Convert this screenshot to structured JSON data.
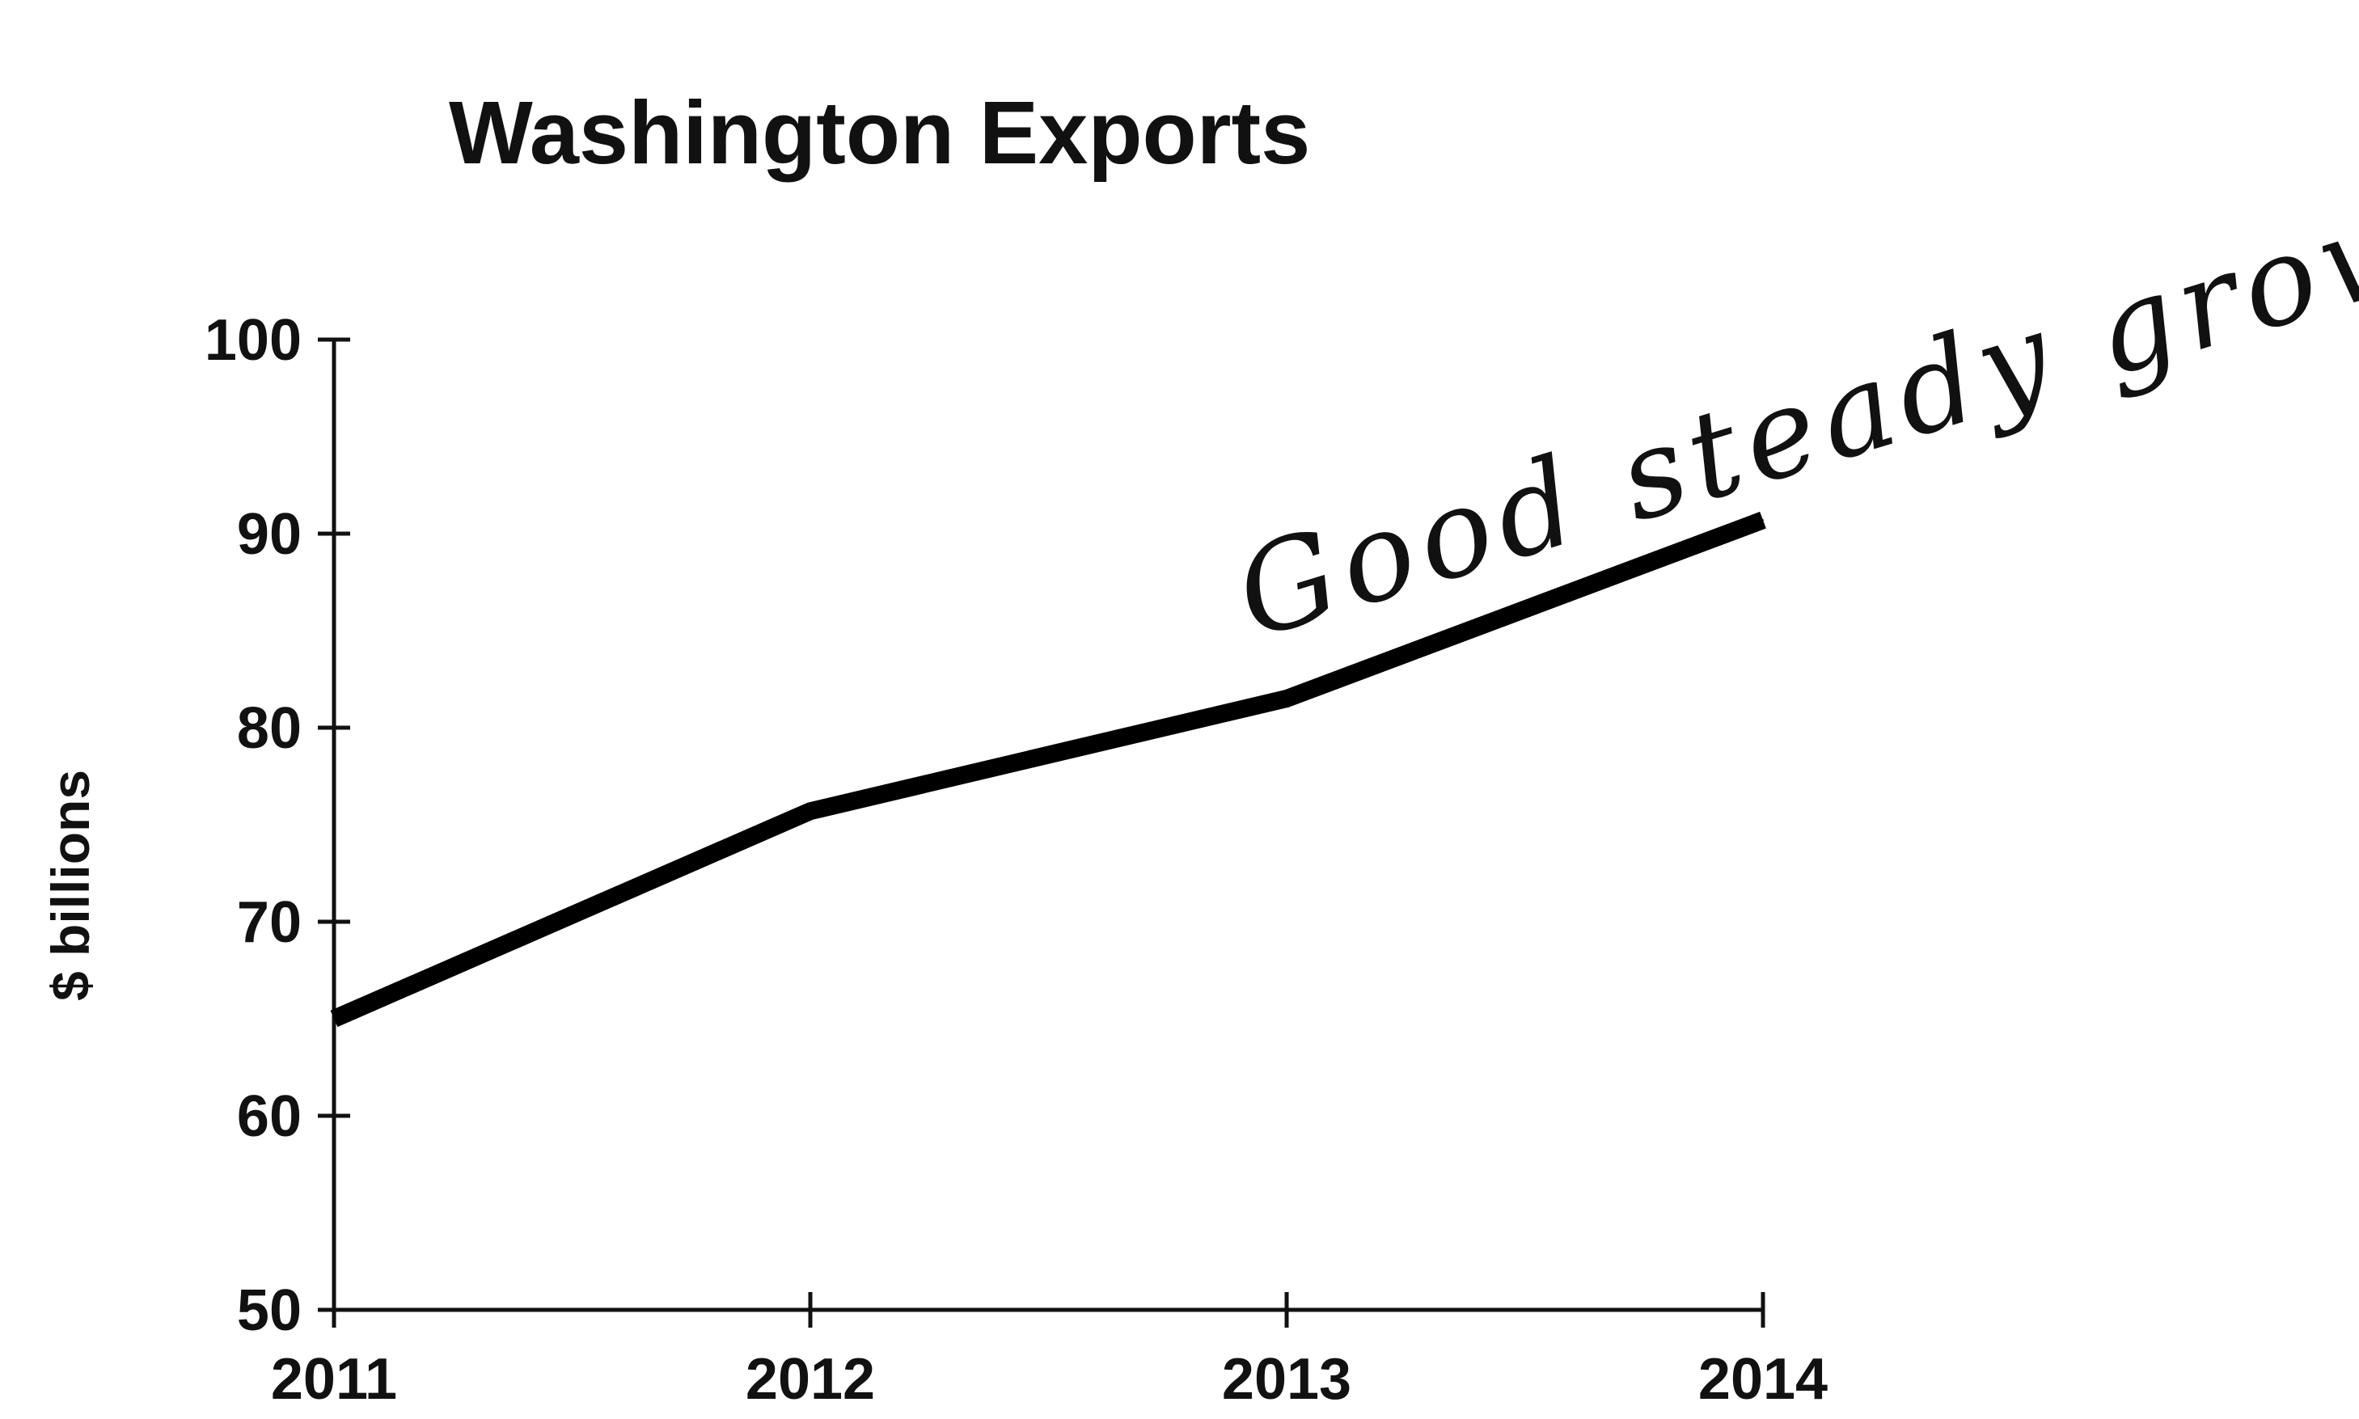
{
  "chart_data": {
    "type": "line",
    "title": "Washington Exports",
    "xlabel": "",
    "ylabel": "$ billions",
    "x": [
      2011,
      2012,
      2013,
      2014
    ],
    "x_tick_labels": [
      "2011",
      "2012",
      "2013",
      "2014"
    ],
    "y_ticks": [
      50,
      60,
      70,
      80,
      90,
      100
    ],
    "y_tick_labels": [
      "50",
      "60",
      "70",
      "80",
      "90",
      "100"
    ],
    "ylim": [
      50,
      100
    ],
    "xlim": [
      2011,
      2014
    ],
    "series": [
      {
        "values": [
          65,
          75.7,
          81.5,
          90.7
        ],
        "color": "#000000"
      }
    ],
    "grid": false,
    "annotation": "Good steady growth."
  }
}
